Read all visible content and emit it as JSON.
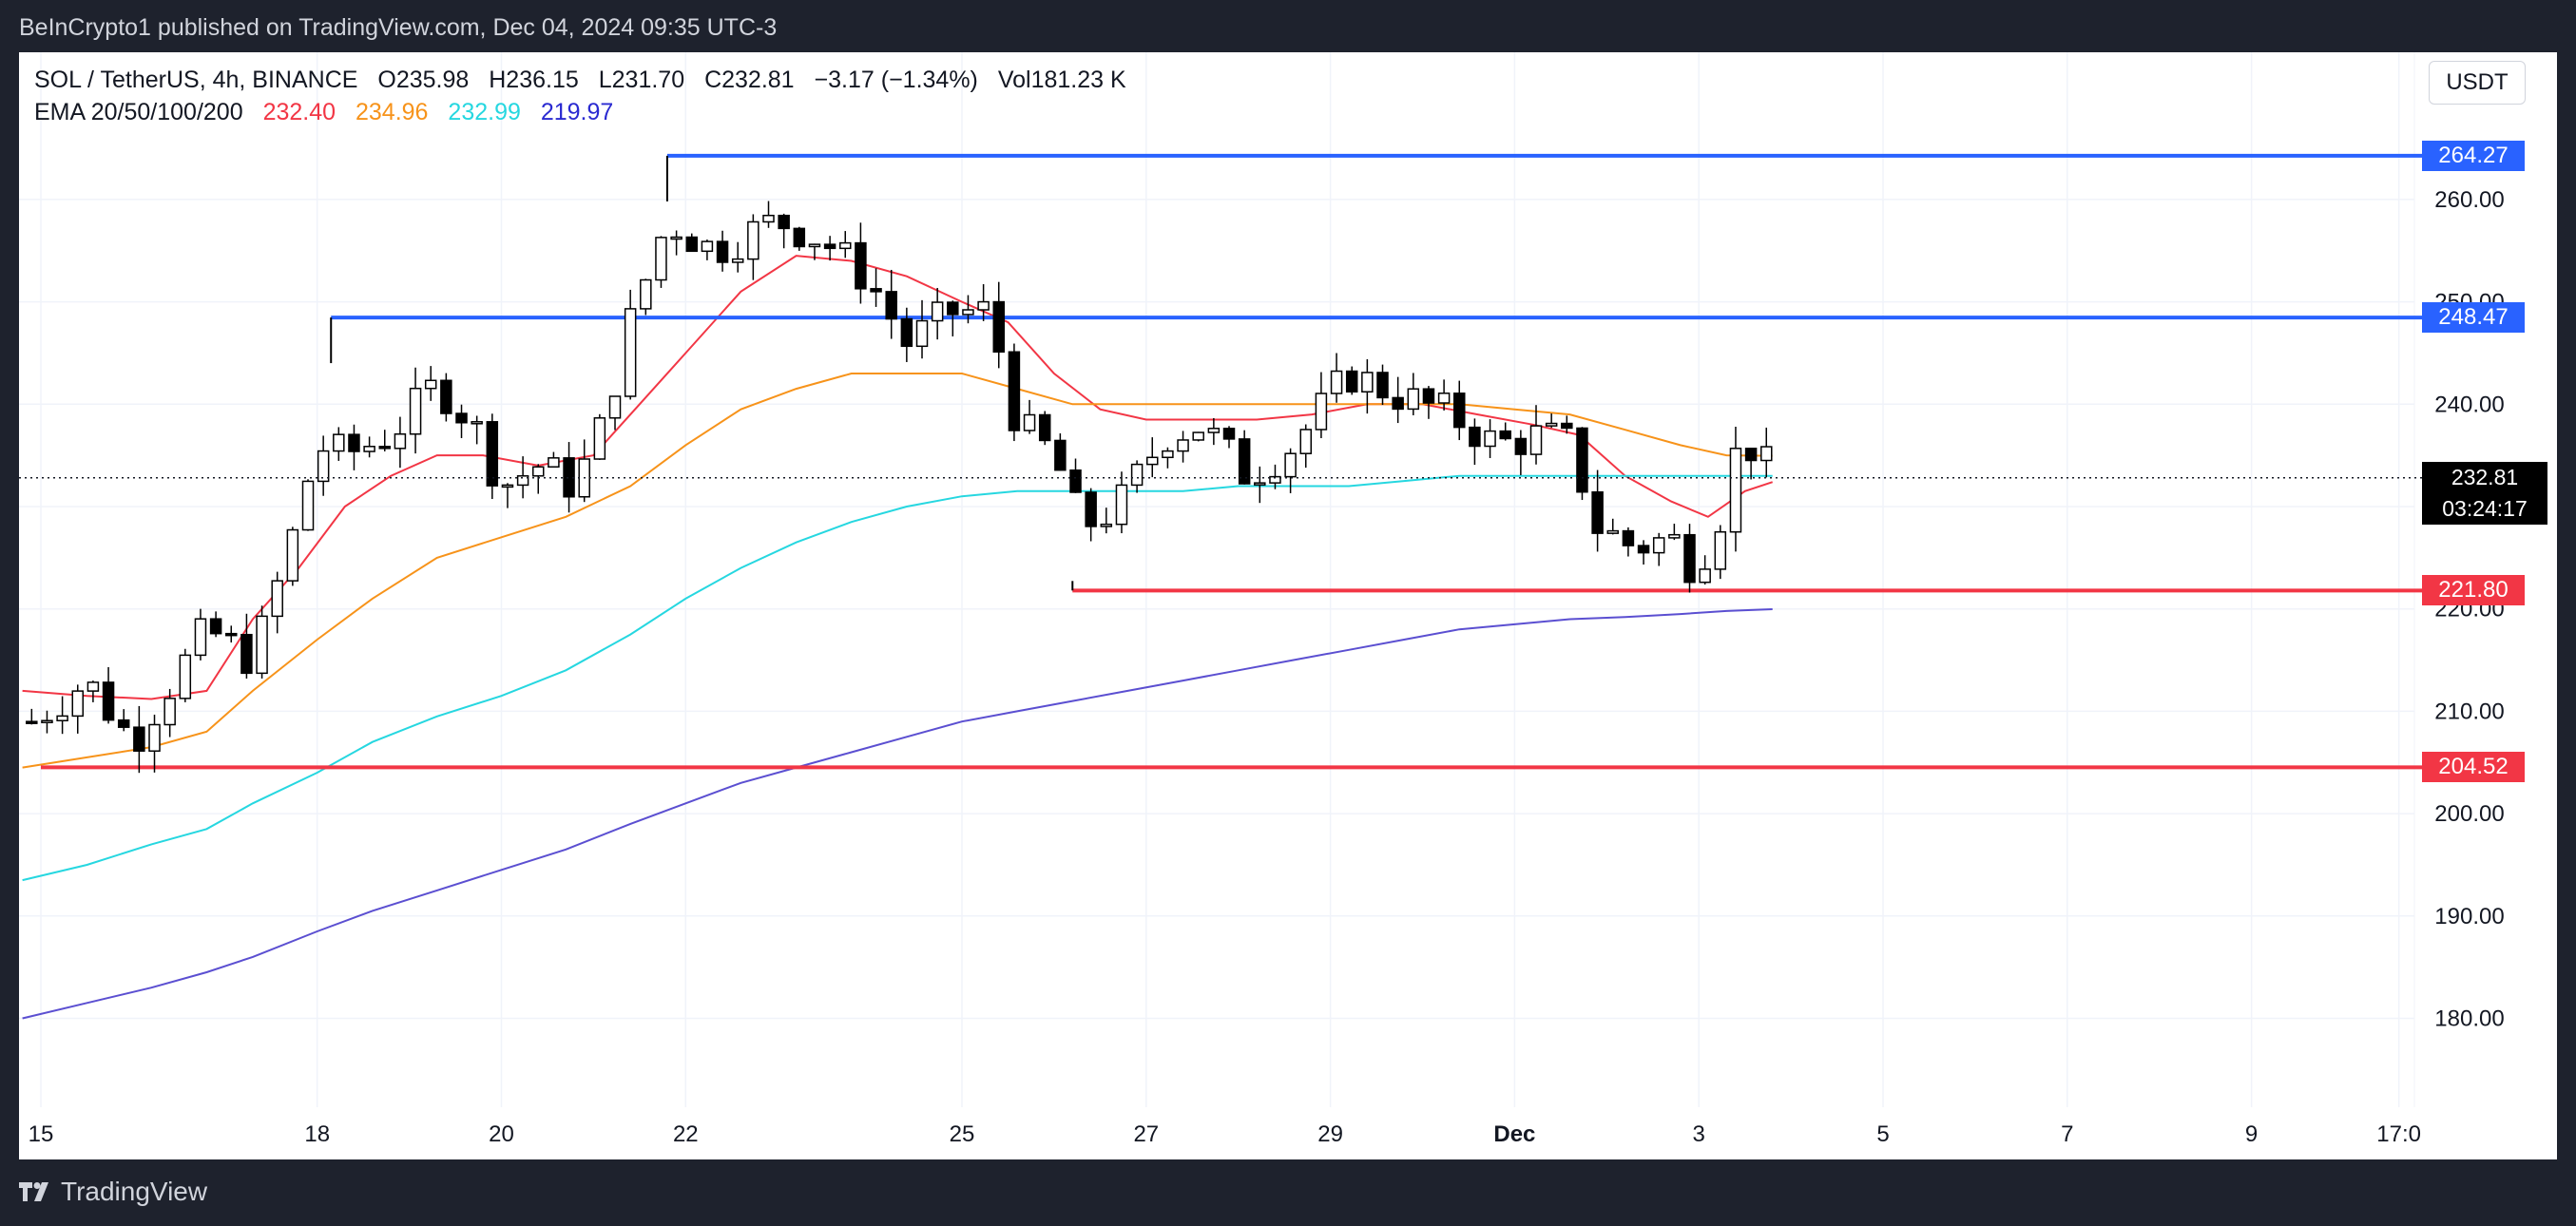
{
  "header": {
    "published": "BeInCrypto1 published on TradingView.com, Dec 04, 2024 09:35 UTC-3"
  },
  "legend": {
    "symbol": "SOL / TetherUS, 4h, BINANCE",
    "open": "O235.98",
    "high": "H236.15",
    "low": "L231.70",
    "close": "C232.81",
    "change": "−3.17 (−1.34%)",
    "volume": "Vol181.23 K",
    "ema_label": "EMA 20/50/100/200",
    "ema20": "232.40",
    "ema50": "234.96",
    "ema100": "232.99",
    "ema200": "219.97"
  },
  "currency_button": "USDT",
  "footer": {
    "brand": "TradingView"
  },
  "colors": {
    "up_candle": "#ffffff",
    "down_candle": "#000000",
    "resistance": "#2962ff",
    "support": "#f23645",
    "ema20": "#f23645",
    "ema50": "#f7931a",
    "ema100": "#26d7e0",
    "ema200": "#5b4fd1"
  },
  "chart_data": {
    "type": "candlestick",
    "ylim": [
      175,
      267
    ],
    "y_ticks": [
      180,
      190,
      200,
      210,
      220,
      230,
      240,
      250,
      260
    ],
    "y_tick_labels": [
      "180.00",
      "190.00",
      "200.00",
      "210.00",
      "220.00",
      "230.00",
      "240.00",
      "250.00",
      "260.00"
    ],
    "x_ticks": [
      {
        "label": "15",
        "day": 15
      },
      {
        "label": "18",
        "day": 18
      },
      {
        "label": "20",
        "day": 20
      },
      {
        "label": "22",
        "day": 22
      },
      {
        "label": "25",
        "day": 25
      },
      {
        "label": "27",
        "day": 27
      },
      {
        "label": "29",
        "day": 29
      },
      {
        "label": "Dec",
        "day": 31
      },
      {
        "label": "3",
        "day": 33
      },
      {
        "label": "5",
        "day": 35
      },
      {
        "label": "7",
        "day": 37
      },
      {
        "label": "9",
        "day": 39
      },
      {
        "label": "17:0",
        "day": 40.6
      }
    ],
    "last_price": "232.81",
    "countdown": "03:24:17",
    "levels": [
      {
        "value": 264.27,
        "label": "264.27",
        "kind": "resistance",
        "from_day": 21.8
      },
      {
        "value": 248.47,
        "label": "248.47",
        "kind": "resistance",
        "from_day": 18.15
      },
      {
        "value": 221.8,
        "label": "221.80",
        "kind": "support",
        "from_day": 26.2
      },
      {
        "value": 204.52,
        "label": "204.52",
        "kind": "support",
        "from_day": 15
      }
    ],
    "ohlc_keypoints": [
      [
        14.9,
        209.0
      ],
      [
        15.5,
        213.0
      ],
      [
        16.0,
        207.0
      ],
      [
        16.8,
        218.0
      ],
      [
        17.3,
        215.0
      ],
      [
        17.7,
        226.0
      ],
      [
        18.0,
        236.0
      ],
      [
        18.3,
        235.0
      ],
      [
        18.8,
        237.0
      ],
      [
        19.3,
        242.0
      ],
      [
        19.7,
        238.0
      ],
      [
        20.0,
        232.0
      ],
      [
        20.4,
        234.0
      ],
      [
        20.8,
        232.0
      ],
      [
        21.1,
        238.0
      ],
      [
        21.4,
        248.0
      ],
      [
        21.8,
        258.0
      ],
      [
        22.3,
        255.0
      ],
      [
        23.0,
        258.0
      ],
      [
        23.5,
        256.0
      ],
      [
        24.0,
        252.0
      ],
      [
        24.4,
        246.0
      ],
      [
        24.9,
        249.0
      ],
      [
        25.3,
        249.0
      ],
      [
        25.6,
        238.0
      ],
      [
        26.0,
        235.0
      ],
      [
        26.3,
        228.0
      ],
      [
        26.7,
        230.0
      ],
      [
        27.2,
        237.0
      ],
      [
        27.6,
        238.0
      ],
      [
        28.1,
        233.0
      ],
      [
        28.6,
        236.0
      ],
      [
        29.2,
        243.0
      ],
      [
        29.7,
        241.0
      ],
      [
        30.3,
        239.0
      ],
      [
        30.8,
        236.0
      ],
      [
        31.3,
        237.0
      ],
      [
        31.6,
        236.0
      ],
      [
        31.9,
        228.0
      ],
      [
        32.3,
        226.0
      ],
      [
        32.7,
        227.0
      ],
      [
        32.95,
        224.0
      ],
      [
        33.2,
        228.0
      ],
      [
        33.4,
        235.0
      ],
      [
        33.6,
        236.0
      ],
      [
        33.8,
        232.8
      ]
    ],
    "ema_series": [
      {
        "name": "EMA 20",
        "key": "ema20",
        "points": [
          [
            14.8,
            212.0
          ],
          [
            15.5,
            211.5
          ],
          [
            16.2,
            211.2
          ],
          [
            16.8,
            212.0
          ],
          [
            17.3,
            219.0
          ],
          [
            17.8,
            224.0
          ],
          [
            18.3,
            230.0
          ],
          [
            18.8,
            233.0
          ],
          [
            19.3,
            235.0
          ],
          [
            19.8,
            235.0
          ],
          [
            20.4,
            234.0
          ],
          [
            21.0,
            235.0
          ],
          [
            21.5,
            240.0
          ],
          [
            22.0,
            245.0
          ],
          [
            22.6,
            251.0
          ],
          [
            23.2,
            254.5
          ],
          [
            23.8,
            254.0
          ],
          [
            24.4,
            252.5
          ],
          [
            25.0,
            250.0
          ],
          [
            25.5,
            248.0
          ],
          [
            26.0,
            243.0
          ],
          [
            26.5,
            239.5
          ],
          [
            27.0,
            238.5
          ],
          [
            27.6,
            238.5
          ],
          [
            28.2,
            238.5
          ],
          [
            28.8,
            239.0
          ],
          [
            29.4,
            240.0
          ],
          [
            30.0,
            240.0
          ],
          [
            30.6,
            239.0
          ],
          [
            31.2,
            238.0
          ],
          [
            31.7,
            237.0
          ],
          [
            32.2,
            233.0
          ],
          [
            32.7,
            230.5
          ],
          [
            33.1,
            229.0
          ],
          [
            33.5,
            231.5
          ],
          [
            33.8,
            232.4
          ]
        ]
      },
      {
        "name": "EMA 50",
        "key": "ema50",
        "points": [
          [
            14.8,
            204.5
          ],
          [
            15.5,
            205.5
          ],
          [
            16.2,
            206.5
          ],
          [
            16.8,
            208.0
          ],
          [
            17.3,
            212.0
          ],
          [
            18.0,
            217.0
          ],
          [
            18.6,
            221.0
          ],
          [
            19.3,
            225.0
          ],
          [
            20.0,
            227.0
          ],
          [
            20.7,
            229.0
          ],
          [
            21.4,
            232.0
          ],
          [
            22.0,
            236.0
          ],
          [
            22.6,
            239.5
          ],
          [
            23.2,
            241.5
          ],
          [
            23.8,
            243.0
          ],
          [
            24.4,
            243.0
          ],
          [
            25.0,
            243.0
          ],
          [
            25.6,
            241.5
          ],
          [
            26.2,
            240.0
          ],
          [
            26.8,
            240.0
          ],
          [
            27.4,
            240.0
          ],
          [
            28.0,
            240.0
          ],
          [
            28.6,
            240.0
          ],
          [
            29.2,
            240.0
          ],
          [
            29.8,
            240.0
          ],
          [
            30.4,
            240.0
          ],
          [
            31.0,
            239.5
          ],
          [
            31.6,
            239.0
          ],
          [
            32.2,
            237.5
          ],
          [
            32.8,
            236.0
          ],
          [
            33.3,
            235.0
          ],
          [
            33.8,
            234.96
          ]
        ]
      },
      {
        "name": "EMA 100",
        "key": "ema100",
        "points": [
          [
            14.8,
            193.5
          ],
          [
            15.5,
            195.0
          ],
          [
            16.2,
            197.0
          ],
          [
            16.8,
            198.5
          ],
          [
            17.3,
            201.0
          ],
          [
            18.0,
            204.0
          ],
          [
            18.6,
            207.0
          ],
          [
            19.3,
            209.5
          ],
          [
            20.0,
            211.5
          ],
          [
            20.7,
            214.0
          ],
          [
            21.4,
            217.5
          ],
          [
            22.0,
            221.0
          ],
          [
            22.6,
            224.0
          ],
          [
            23.2,
            226.5
          ],
          [
            23.8,
            228.5
          ],
          [
            24.4,
            230.0
          ],
          [
            25.0,
            231.0
          ],
          [
            25.6,
            231.5
          ],
          [
            26.2,
            231.5
          ],
          [
            26.8,
            231.5
          ],
          [
            27.4,
            231.5
          ],
          [
            28.0,
            232.0
          ],
          [
            28.6,
            232.0
          ],
          [
            29.2,
            232.0
          ],
          [
            29.8,
            232.5
          ],
          [
            30.4,
            233.0
          ],
          [
            31.0,
            233.0
          ],
          [
            31.6,
            233.0
          ],
          [
            32.2,
            233.0
          ],
          [
            32.8,
            233.0
          ],
          [
            33.3,
            233.0
          ],
          [
            33.8,
            232.99
          ]
        ]
      },
      {
        "name": "EMA 200",
        "key": "ema200",
        "points": [
          [
            14.8,
            180.0
          ],
          [
            15.5,
            181.5
          ],
          [
            16.2,
            183.0
          ],
          [
            16.8,
            184.5
          ],
          [
            17.3,
            186.0
          ],
          [
            18.0,
            188.5
          ],
          [
            18.6,
            190.5
          ],
          [
            19.3,
            192.5
          ],
          [
            20.0,
            194.5
          ],
          [
            20.7,
            196.5
          ],
          [
            21.4,
            199.0
          ],
          [
            22.0,
            201.0
          ],
          [
            22.6,
            203.0
          ],
          [
            23.2,
            204.5
          ],
          [
            23.8,
            206.0
          ],
          [
            24.4,
            207.5
          ],
          [
            25.0,
            209.0
          ],
          [
            25.6,
            210.0
          ],
          [
            26.2,
            211.0
          ],
          [
            26.8,
            212.0
          ],
          [
            27.4,
            213.0
          ],
          [
            28.0,
            214.0
          ],
          [
            28.6,
            215.0
          ],
          [
            29.2,
            216.0
          ],
          [
            29.8,
            217.0
          ],
          [
            30.4,
            218.0
          ],
          [
            31.0,
            218.5
          ],
          [
            31.6,
            219.0
          ],
          [
            32.2,
            219.2
          ],
          [
            32.8,
            219.5
          ],
          [
            33.3,
            219.8
          ],
          [
            33.8,
            219.97
          ]
        ]
      }
    ]
  }
}
